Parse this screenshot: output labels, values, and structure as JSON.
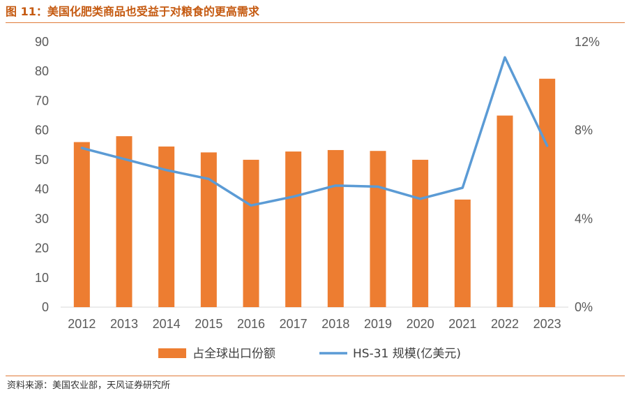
{
  "figure": {
    "title": "图 11：美国化肥类商品也受益于对粮食的更高需求",
    "source": "资料来源：美国农业部，天风证券研究所"
  },
  "colors": {
    "bar": "#ed7d31",
    "line": "#5b9bd5",
    "accent": "#c55a11"
  },
  "chart_data": {
    "type": "bar+line",
    "categories": [
      "2012",
      "2013",
      "2014",
      "2015",
      "2016",
      "2017",
      "2018",
      "2019",
      "2020",
      "2021",
      "2022",
      "2023"
    ],
    "series": [
      {
        "name": "占全球出口份额",
        "type": "bar",
        "axis": "left",
        "values": [
          56,
          58,
          54.5,
          52.5,
          50,
          52.8,
          53.3,
          53,
          50,
          36.5,
          65,
          77.5
        ]
      },
      {
        "name": "HS-31 规模(亿美元)",
        "type": "line",
        "axis": "right",
        "values": [
          7.2,
          6.7,
          6.2,
          5.8,
          4.6,
          5.0,
          5.5,
          5.45,
          4.9,
          5.4,
          11.3,
          7.3
        ]
      }
    ],
    "y_left": {
      "min": 0,
      "max": 90,
      "ticks": [
        "0",
        "10",
        "20",
        "30",
        "40",
        "50",
        "60",
        "70",
        "80",
        "90"
      ]
    },
    "y_right": {
      "min": 0,
      "max": 12,
      "ticks": [
        "0%",
        "4%",
        "8%",
        "12%"
      ],
      "tick_values": [
        0,
        4,
        8,
        12
      ]
    },
    "legend": {
      "position": "bottom",
      "items": [
        {
          "label": "占全球出口份额",
          "symbol": "bar"
        },
        {
          "label": "HS-31 规模(亿美元)",
          "symbol": "line"
        }
      ]
    }
  }
}
